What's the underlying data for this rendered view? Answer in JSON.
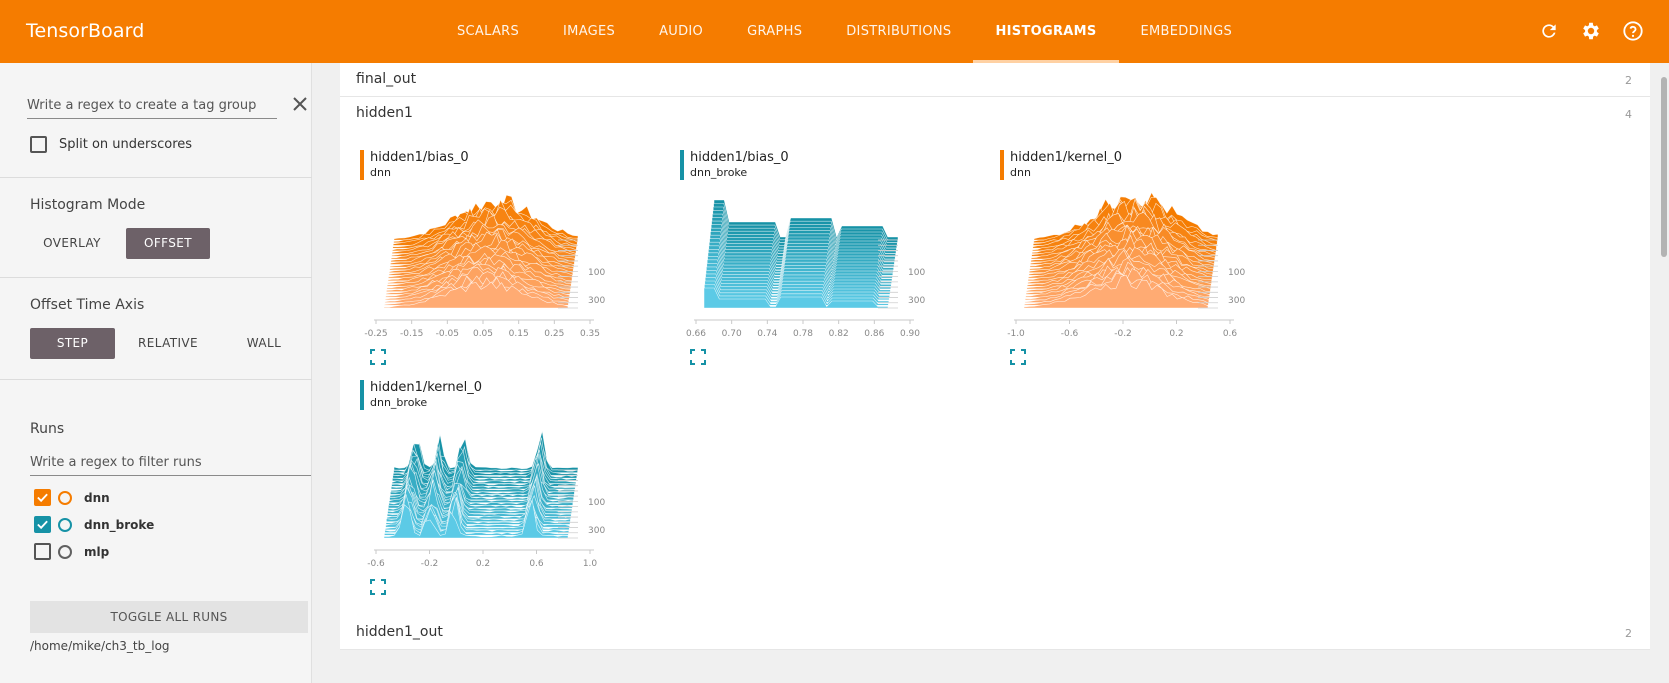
{
  "header": {
    "brand": "TensorBoard",
    "tabs": [
      {
        "label": "SCALARS"
      },
      {
        "label": "IMAGES"
      },
      {
        "label": "AUDIO"
      },
      {
        "label": "GRAPHS"
      },
      {
        "label": "DISTRIBUTIONS"
      },
      {
        "label": "HISTOGRAMS",
        "active": true
      },
      {
        "label": "EMBEDDINGS"
      }
    ],
    "icons": [
      "refresh-icon",
      "settings-icon",
      "help-icon"
    ]
  },
  "sidebar": {
    "tag_regex_placeholder": "Write a regex to create a tag group",
    "split_underscores_label": "Split on underscores",
    "split_underscores_checked": false,
    "histogram_mode": {
      "title": "Histogram Mode",
      "options": [
        "OVERLAY",
        "OFFSET"
      ],
      "selected": "OFFSET"
    },
    "offset_axis": {
      "title": "Offset Time Axis",
      "options": [
        "STEP",
        "RELATIVE",
        "WALL"
      ],
      "selected": "STEP"
    },
    "runs": {
      "title": "Runs",
      "filter_placeholder": "Write a regex to filter runs",
      "items": [
        {
          "name": "dnn",
          "checked": true,
          "color": "#f57c00"
        },
        {
          "name": "dnn_broke",
          "checked": true,
          "color": "#1692a6"
        },
        {
          "name": "mlp",
          "checked": false,
          "color": "#616161"
        }
      ],
      "toggle_label": "TOGGLE ALL RUNS",
      "logdir": "/home/mike/ch3_tb_log"
    }
  },
  "main": {
    "groups": [
      {
        "name": "final_out",
        "count": "2"
      },
      {
        "name": "hidden1",
        "count": "4"
      },
      {
        "name": "hidden1_out",
        "count": "2"
      }
    ],
    "charts": [
      {
        "tag": "hidden1/bias_0",
        "run": "dnn",
        "color": "#f57c00",
        "fill_light": "#ffab73",
        "x_ticks": [
          "-0.25",
          "-0.15",
          "-0.05",
          "0.05",
          "0.15",
          "0.25",
          "0.35"
        ],
        "y_ticks": [
          "100",
          "300"
        ]
      },
      {
        "tag": "hidden1/bias_0",
        "run": "dnn_broke",
        "color": "#1692a6",
        "fill_light": "#5ccae6",
        "x_ticks": [
          "0.66",
          "0.70",
          "0.74",
          "0.78",
          "0.82",
          "0.86",
          "0.90"
        ],
        "y_ticks": [
          "100",
          "300"
        ]
      },
      {
        "tag": "hidden1/kernel_0",
        "run": "dnn",
        "color": "#f57c00",
        "fill_light": "#ffab73",
        "x_ticks": [
          "-1.0",
          "-0.6",
          "-0.2",
          "0.2",
          "0.6"
        ],
        "y_ticks": [
          "100",
          "300"
        ]
      },
      {
        "tag": "hidden1/kernel_0",
        "run": "dnn_broke",
        "color": "#1692a6",
        "fill_light": "#5ccae6",
        "x_ticks": [
          "-0.6",
          "-0.2",
          "0.2",
          "0.6",
          "1.0"
        ],
        "y_ticks": [
          "100",
          "300"
        ]
      }
    ]
  }
}
